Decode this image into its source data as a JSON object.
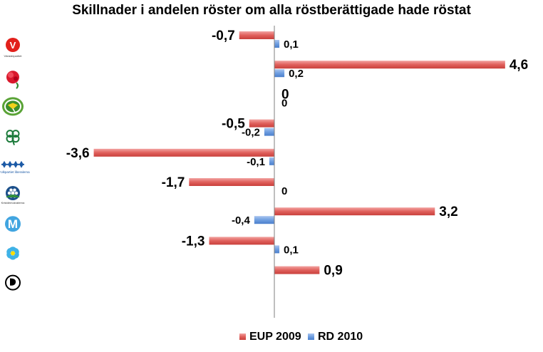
{
  "chart_data": {
    "type": "bar",
    "orientation": "horizontal",
    "title": "Skillnader i andelen röster om alla röstberättigade hade röstat",
    "categories": [
      "Vänsterpartiet",
      "Socialdemokraterna",
      "Miljöpartiet",
      "Centerpartiet",
      "Folkpartiet liberalerna",
      "Kristdemokraterna",
      "Moderaterna",
      "Sverigedemokraterna",
      "Piratpartiet"
    ],
    "series": [
      {
        "name": "EUP 2009",
        "color": "#d9534f",
        "values": [
          -0.7,
          4.6,
          0,
          -0.5,
          -3.6,
          -1.7,
          3.2,
          -1.3,
          0.9
        ],
        "labels": [
          "-0,7",
          "4,6",
          "0",
          "-0,5",
          "-3,6",
          "-1,7",
          "3,2",
          "-1,3",
          "0,9"
        ]
      },
      {
        "name": "RD 2010",
        "color": "#5b8fd9",
        "values": [
          0.1,
          0.2,
          0,
          -0.2,
          -0.1,
          0,
          -0.4,
          0.1,
          null
        ],
        "labels": [
          "0,1",
          "0,2",
          "0",
          "-0,2",
          "-0,1",
          "0",
          "-0,4",
          "0,1",
          ""
        ]
      }
    ],
    "category_icons": [
      "vansterpartiet-logo-icon",
      "socialdemokraterna-rose-icon",
      "miljopartiet-sunflower-icon",
      "centerpartiet-clover-icon",
      "folkpartiet-logo-icon",
      "kristdemokraterna-logo-icon",
      "moderaterna-m-icon",
      "sverigedemokraterna-flower-icon",
      "piratpartiet-sail-icon"
    ],
    "xlim": [
      -4.5,
      5.6
    ],
    "legend": "bottom",
    "grid": false
  },
  "logos": {
    "v_letter": "V",
    "v_caption": "Vänsterpartiet",
    "fp_caption": "Folkpartiet liberalerna",
    "kd_caption": "Kristdemokraterna",
    "m_letter": "M"
  }
}
